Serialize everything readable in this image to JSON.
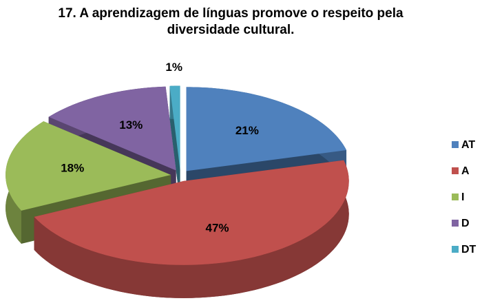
{
  "chart_data": {
    "type": "pie",
    "title": "17. A aprendizagem de línguas promove o respeito pela diversidade cultural.",
    "categories": [
      "AT",
      "A",
      "I",
      "D",
      "DT"
    ],
    "values": [
      21,
      47,
      18,
      13,
      1
    ],
    "value_labels": [
      "21%",
      "47%",
      "18%",
      "13%",
      "1%"
    ],
    "colors": [
      "#4f81bd",
      "#c0504d",
      "#9bbb59",
      "#8064a2",
      "#4bacc6"
    ],
    "legend": "right"
  }
}
